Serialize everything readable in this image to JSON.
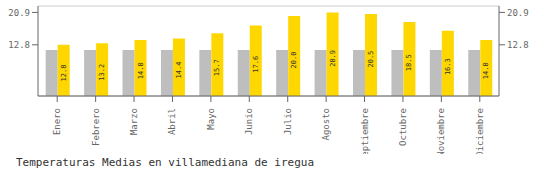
{
  "chart_data": {
    "type": "bar",
    "title": "Temperaturas Medias en villamediana de iregua",
    "categories": [
      "Enero",
      "Febrero",
      "Marzo",
      "Abril",
      "Mayo",
      "Junio",
      "Julio",
      "Agosto",
      "Septiembre",
      "Octubre",
      "Noviembre",
      "Diciembre"
    ],
    "series": [
      {
        "color": "#BEBEBE",
        "values": [
          11.5,
          11.5,
          11.5,
          11.5,
          11.5,
          11.5,
          11.5,
          11.5,
          11.5,
          11.5,
          11.5,
          11.5
        ]
      },
      {
        "color": "#FFD700",
        "values": [
          12.8,
          13.2,
          14.0,
          14.4,
          15.7,
          17.6,
          20.0,
          20.9,
          20.5,
          18.5,
          16.3,
          14.0
        ],
        "data_labels": true,
        "value_labels": [
          "12.8",
          "13.2",
          "14.0",
          "14.4",
          "15.7",
          "17.6",
          "20.0",
          "20.9",
          "20.5",
          "18.5",
          "16.3",
          "14.0"
        ]
      }
    ],
    "ylim": [
      0,
      22.5
    ],
    "yticks": [
      12.8,
      20.9
    ],
    "grid": true
  }
}
